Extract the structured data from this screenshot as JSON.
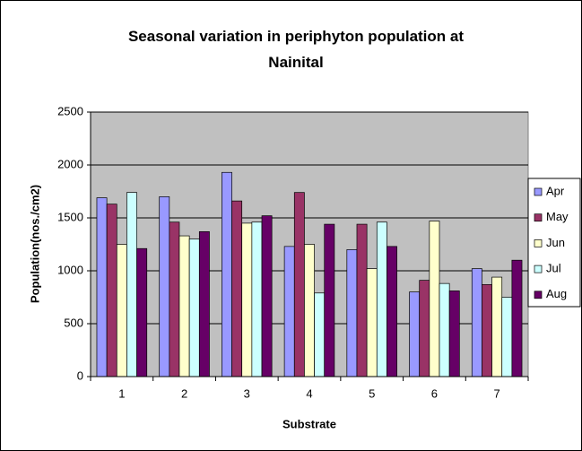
{
  "chart_data": {
    "type": "bar",
    "title": "Seasonal variation in periphyton population at Nainital",
    "x_label": "Substrate",
    "y_label": "Population(nos./cm2)",
    "categories": [
      "1",
      "2",
      "3",
      "4",
      "5",
      "6",
      "7"
    ],
    "series": [
      {
        "name": "Apr",
        "color": "#9999ff",
        "values": [
          1690,
          1700,
          1930,
          1230,
          1200,
          800,
          1020
        ]
      },
      {
        "name": "May",
        "color": "#993366",
        "values": [
          1630,
          1460,
          1660,
          1740,
          1440,
          910,
          870
        ]
      },
      {
        "name": "Jun",
        "color": "#ffffcc",
        "values": [
          1250,
          1330,
          1450,
          1250,
          1020,
          1470,
          940
        ]
      },
      {
        "name": "Jul",
        "color": "#ccffff",
        "values": [
          1740,
          1300,
          1460,
          790,
          1460,
          880,
          750
        ]
      },
      {
        "name": "Aug",
        "color": "#660066",
        "values": [
          1210,
          1370,
          1520,
          1440,
          1230,
          810,
          1100
        ]
      }
    ],
    "ylim": [
      0,
      2500
    ],
    "yticks": [
      0,
      500,
      1000,
      1500,
      2000,
      2500
    ],
    "grid": true,
    "legend": "right",
    "plot_background": "#c0c0c0"
  }
}
